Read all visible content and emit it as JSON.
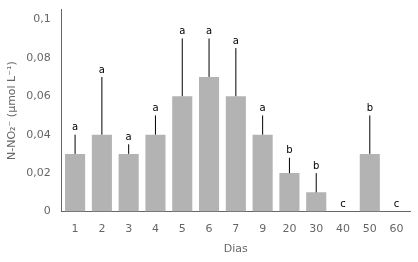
{
  "chart_data": {
    "type": "bar",
    "categories": [
      "1",
      "2",
      "3",
      "4",
      "5",
      "6",
      "7",
      "9",
      "20",
      "30",
      "40",
      "50",
      "60"
    ],
    "values": [
      0.03,
      0.04,
      0.03,
      0.04,
      0.06,
      0.07,
      0.06,
      0.04,
      0.02,
      0.01,
      0.0,
      0.03,
      0.0
    ],
    "errors": [
      0.01,
      0.03,
      0.005,
      0.01,
      0.03,
      0.02,
      0.025,
      0.01,
      0.008,
      0.01,
      0.0,
      0.02,
      0.0
    ],
    "annotations": [
      "a",
      "a",
      "a",
      "a",
      "a",
      "a",
      "a",
      "a",
      "b",
      "b",
      "c",
      "b",
      "c"
    ],
    "color": "#b3b3b3",
    "xlabel": "Dias",
    "ylabel": "N-NO₂⁻ (μmol L⁻¹)",
    "ylim": [
      0,
      0.105
    ],
    "yticks": [
      0,
      {
        "value": 0.02,
        "label": "0,02"
      },
      {
        "value": 0.04,
        "label": "0,04"
      },
      {
        "value": 0.06,
        "label": "0,06"
      },
      {
        "value": 0.08,
        "label": "0,08"
      },
      {
        "value": 0.1,
        "label": "0,1"
      }
    ],
    "grid": false
  }
}
